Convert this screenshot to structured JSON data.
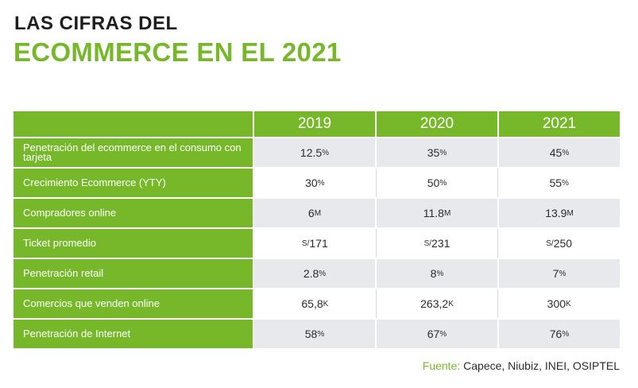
{
  "title": {
    "line1": "LAS CIFRAS DEL",
    "line2": "ECOMMERCE EN EL 2021"
  },
  "colors": {
    "accent": "#76b82a",
    "stripe": "#e7e9ec",
    "text": "#2b2b2b"
  },
  "table": {
    "years": [
      "2019",
      "2020",
      "2021"
    ],
    "rows": [
      {
        "label": "Penetración del ecommerce en el consumo con tarjeta",
        "values": [
          {
            "prefix": "",
            "num": "12.5",
            "unit": "%"
          },
          {
            "prefix": "",
            "num": "35",
            "unit": "%"
          },
          {
            "prefix": "",
            "num": "45",
            "unit": "%"
          }
        ]
      },
      {
        "label": "Crecimiento Ecommerce (YTY)",
        "values": [
          {
            "prefix": "",
            "num": "30",
            "unit": "%"
          },
          {
            "prefix": "",
            "num": "50",
            "unit": "%"
          },
          {
            "prefix": "",
            "num": "55",
            "unit": "%"
          }
        ]
      },
      {
        "label": "Compradores online",
        "values": [
          {
            "prefix": "",
            "num": "6",
            "unit": "M"
          },
          {
            "prefix": "",
            "num": "11.8",
            "unit": "M"
          },
          {
            "prefix": "",
            "num": "13.9",
            "unit": "M"
          }
        ]
      },
      {
        "label": "Ticket promedio",
        "values": [
          {
            "prefix": "S/",
            "num": "171",
            "unit": ""
          },
          {
            "prefix": "S/",
            "num": "231",
            "unit": ""
          },
          {
            "prefix": "S/",
            "num": "250",
            "unit": ""
          }
        ]
      },
      {
        "label": "Penetración retail",
        "values": [
          {
            "prefix": "",
            "num": "2.8",
            "unit": "%"
          },
          {
            "prefix": "",
            "num": "8",
            "unit": "%"
          },
          {
            "prefix": "",
            "num": "7",
            "unit": "%"
          }
        ]
      },
      {
        "label": "Comercios que venden online",
        "values": [
          {
            "prefix": "",
            "num": "65,8",
            "unit": "K"
          },
          {
            "prefix": "",
            "num": "263,2",
            "unit": "K"
          },
          {
            "prefix": "",
            "num": "300",
            "unit": "K"
          }
        ]
      },
      {
        "label": "Penetración de Internet",
        "values": [
          {
            "prefix": "",
            "num": "58",
            "unit": "%"
          },
          {
            "prefix": "",
            "num": "67",
            "unit": "%"
          },
          {
            "prefix": "",
            "num": "76",
            "unit": "%"
          }
        ]
      }
    ]
  },
  "source": {
    "label": "Fuente:",
    "text": "Capece, Niubiz, INEI, OSIPTEL"
  }
}
